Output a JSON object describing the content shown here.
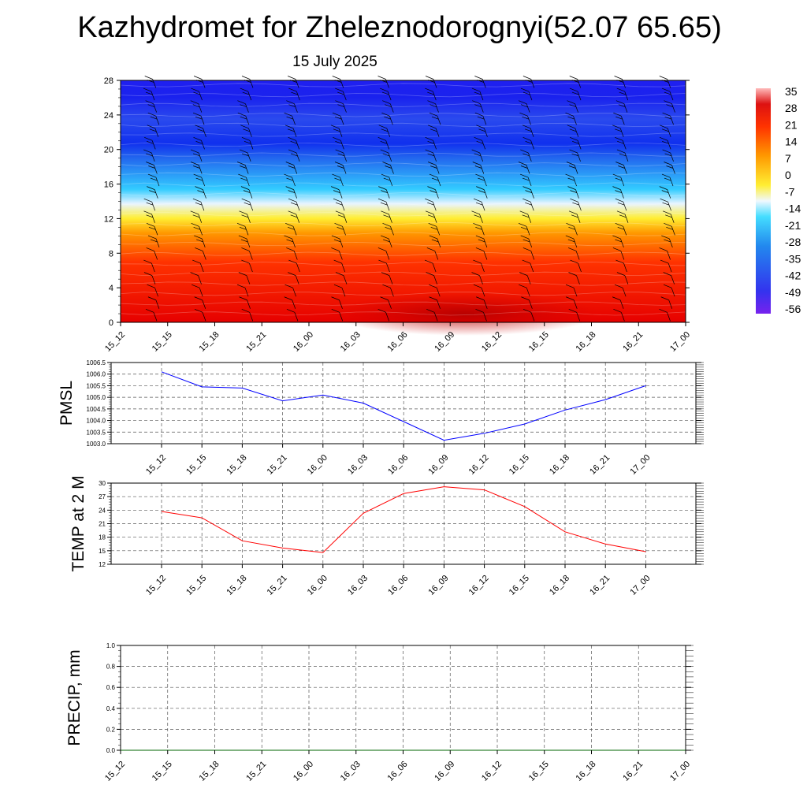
{
  "title": "Kazhydromet for Zheleznodorognyi(52.07 65.65)",
  "subtitle": "15 July 2025",
  "colors": {
    "pmsl_line": "#0000ff",
    "temp_line": "#ff0000",
    "precip_line": "#006400",
    "grid": "#555555",
    "barb": "#000000"
  },
  "chart_data": [
    {
      "type": "heatmap",
      "title": "",
      "xlabel": "",
      "ylabel": "",
      "x": [
        "15_12",
        "15_15",
        "15_18",
        "15_21",
        "16_00",
        "16_03",
        "16_06",
        "16_09",
        "16_12",
        "16_15",
        "16_18",
        "16_21",
        "17_00"
      ],
      "y_ticks": [
        0,
        4,
        8,
        12,
        16,
        20,
        24,
        28
      ],
      "ylim": [
        0,
        28
      ],
      "colorbar_labels": [
        35,
        28,
        21,
        14,
        7,
        0,
        -7,
        -14,
        -21,
        -28,
        -35,
        -42,
        -49,
        -56
      ],
      "grid": false,
      "legend": "right"
    },
    {
      "type": "line",
      "ylabel": "PMSL",
      "x": [
        "15_12",
        "15_15",
        "15_18",
        "15_21",
        "16_00",
        "16_03",
        "16_06",
        "16_09",
        "16_12",
        "16_15",
        "16_18",
        "16_21",
        "17_00"
      ],
      "series": [
        {
          "values": [
            1006.1,
            1005.45,
            1005.4,
            1004.85,
            1005.1,
            1004.75,
            1003.95,
            1003.15,
            1003.45,
            1003.85,
            1004.45,
            1004.9,
            1005.5
          ]
        }
      ],
      "y_ticks": [
        "1003.0",
        "1003.5",
        "1004.0",
        "1004.5",
        "1005.0",
        "1005.5",
        "1006.0",
        "1006.5"
      ],
      "ylim": [
        1003.0,
        1006.5
      ],
      "grid": true
    },
    {
      "type": "line",
      "ylabel": "TEMP at 2 M",
      "x": [
        "15_12",
        "15_15",
        "15_18",
        "15_21",
        "16_00",
        "16_03",
        "16_06",
        "16_09",
        "16_12",
        "16_15",
        "16_18",
        "16_21",
        "17_00"
      ],
      "series": [
        {
          "values": [
            23.7,
            22.3,
            17.2,
            15.6,
            14.6,
            23.3,
            27.7,
            29.2,
            28.5,
            24.8,
            19.2,
            16.5,
            14.8
          ]
        }
      ],
      "y_ticks": [
        "12",
        "15",
        "18",
        "21",
        "24",
        "27",
        "30"
      ],
      "ylim": [
        12,
        30
      ],
      "grid": true
    },
    {
      "type": "line",
      "ylabel": "PRECIP, mm",
      "x": [
        "15_12",
        "15_15",
        "15_18",
        "15_21",
        "16_00",
        "16_03",
        "16_06",
        "16_09",
        "16_12",
        "16_15",
        "16_18",
        "16_21",
        "17_00"
      ],
      "series": [
        {
          "values": [
            0,
            0,
            0,
            0,
            0,
            0,
            0,
            0,
            0,
            0,
            0,
            0,
            0
          ]
        }
      ],
      "y_ticks": [
        "0.0",
        "0.2",
        "0.4",
        "0.6",
        "0.8",
        "1.0"
      ],
      "ylim": [
        0.0,
        1.0
      ],
      "grid": true
    }
  ]
}
